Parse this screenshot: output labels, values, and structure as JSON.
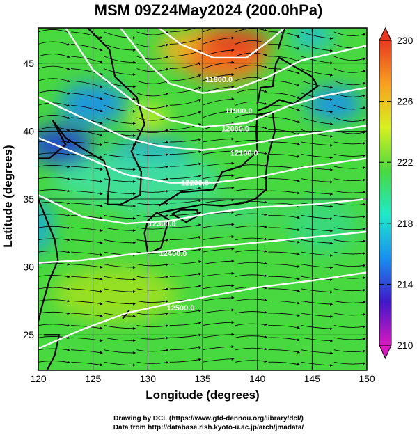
{
  "title": "MSM 09Z24May2024 (200.0hPa)",
  "credits": [
    "Drawing by DCL (https://www.gfd-dennou.org/library/dcl/)",
    "Data from http://database.rish.kyoto-u.ac.jp/arch/jmadata/"
  ],
  "chart_data": {
    "type": "heatmap",
    "xlabel": "Longitude (degrees)",
    "ylabel": "Latitude  (degrees)",
    "xlim": [
      120,
      150
    ],
    "ylim": [
      22.4,
      47.6
    ],
    "x_ticks": [
      120,
      125,
      130,
      135,
      140,
      145,
      150
    ],
    "y_ticks": [
      25,
      30,
      35,
      40,
      45
    ],
    "grid": true,
    "field": "temperature (K)",
    "colorbar": {
      "range": [
        210,
        230
      ],
      "ticks": [
        210,
        214,
        218,
        222,
        226,
        230
      ],
      "extend": "both",
      "colors": [
        "#d818c0",
        "#4018c8",
        "#1890f0",
        "#20e8c8",
        "#48d840",
        "#d8f020",
        "#f8a020",
        "#e83820"
      ]
    },
    "contours": {
      "variable": "geopotential height (m)",
      "levels": [
        11800,
        11900,
        12000,
        12100,
        12200,
        12300,
        12400,
        12500
      ],
      "labels": [
        {
          "text": "11800.0",
          "lon": 136.5,
          "lat": 43.6
        },
        {
          "text": "11900.0",
          "lon": 138.3,
          "lat": 41.3
        },
        {
          "text": "12000.0",
          "lon": 138.0,
          "lat": 40.0
        },
        {
          "text": "12100.0",
          "lon": 138.8,
          "lat": 38.2
        },
        {
          "text": "12200.0",
          "lon": 134.3,
          "lat": 36.0
        },
        {
          "text": "12300.0",
          "lon": 131.3,
          "lat": 33.0
        },
        {
          "text": "12400.0",
          "lon": 132.3,
          "lat": 30.8
        },
        {
          "text": "12500.0",
          "lon": 133.0,
          "lat": 26.8
        }
      ]
    },
    "overlay": "wind streamlines (mostly westerly)"
  }
}
